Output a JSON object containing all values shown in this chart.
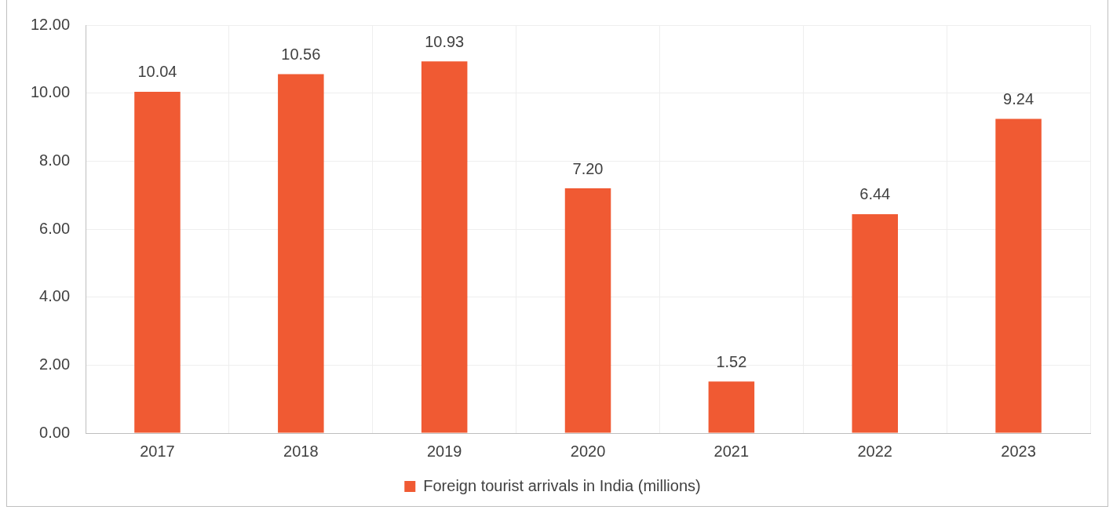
{
  "chart_data": {
    "type": "bar",
    "categories": [
      "2017",
      "2018",
      "2019",
      "2020",
      "2021",
      "2022",
      "2023"
    ],
    "series": [
      {
        "name": "Foreign tourist arrivals in India (millions)",
        "color": "#f05a33",
        "values": [
          10.04,
          10.56,
          10.93,
          7.2,
          1.52,
          6.44,
          9.24
        ],
        "value_labels": [
          "10.04",
          "10.56",
          "10.93",
          "7.20",
          "1.52",
          "6.44",
          "9.24"
        ]
      }
    ],
    "ylim": [
      0,
      12
    ],
    "yticks": [
      {
        "value": 0,
        "label": "0.00"
      },
      {
        "value": 2,
        "label": "2.00"
      },
      {
        "value": 4,
        "label": "4.00"
      },
      {
        "value": 6,
        "label": "6.00"
      },
      {
        "value": 8,
        "label": "8.00"
      },
      {
        "value": 10,
        "label": "10.00"
      },
      {
        "value": 12,
        "label": "12.00"
      }
    ],
    "grid": true,
    "legend": "bottom"
  }
}
